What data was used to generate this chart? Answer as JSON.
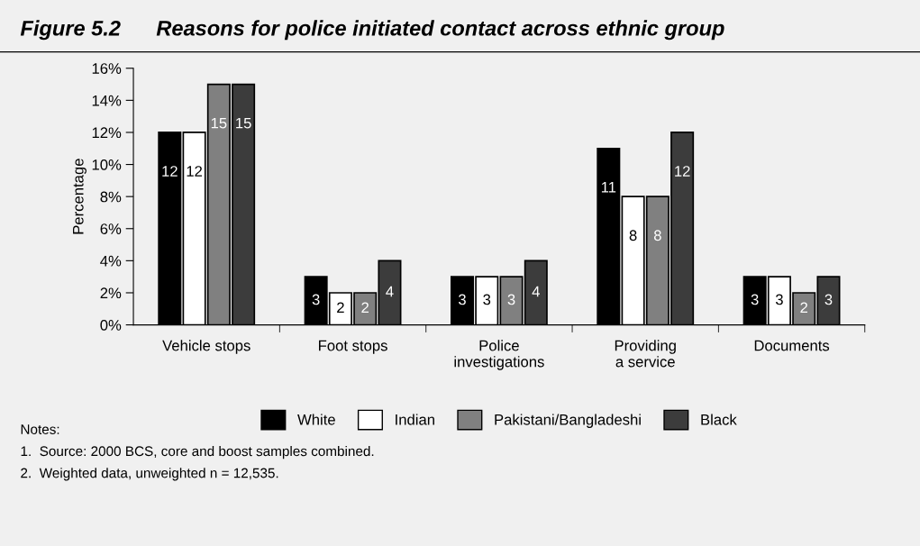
{
  "chart_data": {
    "type": "bar",
    "title": "Figure 5.2      Reasons for police initiated contact across ethnic group",
    "ylabel": "Percentage",
    "categories": [
      "Vehicle stops",
      "Foot stops",
      "Police\ninvestigations",
      "Providing\na service",
      "Documents"
    ],
    "series": [
      {
        "name": "White",
        "color": "#000000",
        "values": [
          12,
          3,
          3,
          11,
          3
        ]
      },
      {
        "name": "Indian",
        "color": "#ffffff",
        "values": [
          12,
          2,
          3,
          8,
          3
        ]
      },
      {
        "name": "Pakistani/Bangladeshi",
        "color": "#808080",
        "values": [
          15,
          2,
          3,
          8,
          2
        ]
      },
      {
        "name": "Black",
        "color": "#3c3c3c",
        "values": [
          15,
          4,
          4,
          12,
          3
        ]
      }
    ],
    "ylim": [
      0,
      16
    ],
    "yticks": [
      {
        "value": 0,
        "label": "0%"
      },
      {
        "value": 2,
        "label": "2%"
      },
      {
        "value": 4,
        "label": "4%"
      },
      {
        "value": 6,
        "label": "6%"
      },
      {
        "value": 8,
        "label": "8%"
      },
      {
        "value": 10,
        "label": "10%"
      },
      {
        "value": 12,
        "label": "12%"
      },
      {
        "value": 14,
        "label": "14%"
      },
      {
        "value": 16,
        "label": "16%"
      }
    ],
    "grid": false,
    "legend": "bottom",
    "data_labels": true,
    "annotations": [
      "Notes:",
      "1.  Source: 2000 BCS, core and boost samples combined.",
      "2.  Weighted data, unweighted n = 12,535."
    ]
  }
}
